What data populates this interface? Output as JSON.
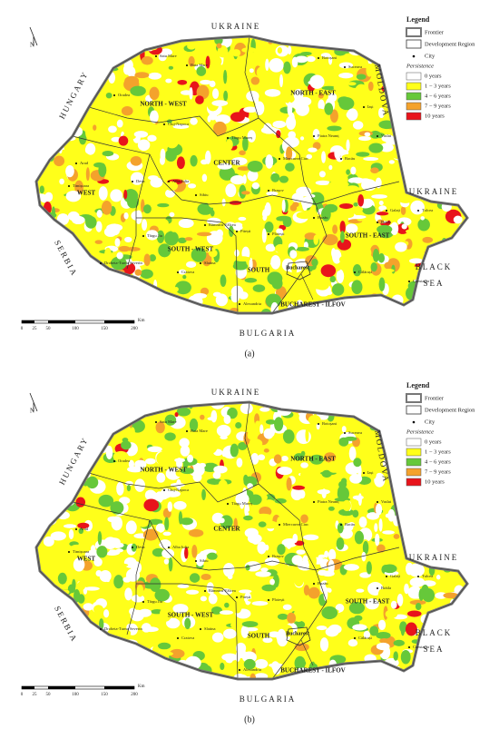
{
  "panels": [
    {
      "caption": "(a)",
      "countries": [
        "UKRAINE",
        "MOLDOVA",
        "UKRAINE",
        "HUNGARY",
        "SERBIA",
        "BULGARIA",
        "BLACK",
        "SEA"
      ],
      "regions": [
        "NORTH - WEST",
        "NORTH - EAST",
        "CENTER",
        "WEST",
        "SOUTH - WEST",
        "SOUTH",
        "SOUTH - EAST",
        "BUCHAREST - ILFOV"
      ],
      "capital": "Bucharest",
      "cities": [
        "Satu Mare",
        "Baia Mare",
        "Suceava",
        "Botoșani",
        "Oradea",
        "Cluj-Napoca",
        "Iași",
        "Arad",
        "Timișoara",
        "Deva",
        "Alba Iulia",
        "Sibiu",
        "Brașov",
        "Târgu Mureș",
        "Piatra Neamț",
        "Bacău",
        "Vaslui",
        "Galați",
        "Brăila",
        "Tulcea",
        "Constanța",
        "Călărași",
        "Craiova",
        "Pitești",
        "Ploiești",
        "Buzău",
        "Alexandria",
        "Slatina",
        "Târgu Jiu",
        "Drobeta-Turnu Severin",
        "Râmnicu Vâlcea",
        "Miercurea Ciuc"
      ],
      "north": "N",
      "scale": {
        "ticks": [
          "0",
          "25",
          "50",
          "100",
          "150",
          "200"
        ],
        "unit": "Km"
      },
      "legend": {
        "title": "Legend",
        "frontier": "Frontier",
        "region": "Development Region",
        "city": "City",
        "subtitle": "Persistence",
        "items": [
          {
            "label": "0 years",
            "color": "#ffffff"
          },
          {
            "label": "1 − 3 years",
            "color": "#ffff1a"
          },
          {
            "label": "4 − 6 years",
            "color": "#66c83a"
          },
          {
            "label": "7 − 9 years",
            "color": "#f4a22c"
          },
          {
            "label": "10 years",
            "color": "#e8141b"
          }
        ]
      }
    },
    {
      "caption": "(b)",
      "countries": [
        "UKRAINE",
        "MOLDOVA",
        "UKRAINE",
        "HUNGARY",
        "SERBIA",
        "BULGARIA",
        "BLACK",
        "SEA"
      ],
      "regions": [
        "NORTH - WEST",
        "NORTH - EAST",
        "CENTER",
        "WEST",
        "SOUTH - WEST",
        "SOUTH",
        "SOUTH - EAST",
        "BUCHAREST - ILFOV"
      ],
      "capital": "Bucharest",
      "cities": [
        "Satu Mare",
        "Baia Mare",
        "Suceava",
        "Botoșani",
        "Oradea",
        "Cluj-Napoca",
        "Iași",
        "Arad",
        "Timișoara",
        "Deva",
        "Alba Iulia",
        "Sibiu",
        "Brașov",
        "Târgu Mureș",
        "Piatra Neamț",
        "Bacău",
        "Vaslui",
        "Galați",
        "Brăila",
        "Tulcea",
        "Constanța",
        "Călărași",
        "Craiova",
        "Pitești",
        "Ploiești",
        "Buzău",
        "Alexandria",
        "Slatina",
        "Târgu Jiu",
        "Drobeta-Turnu Severin",
        "Râmnicu Vâlcea",
        "Miercurea Ciuc"
      ],
      "north": "N",
      "scale": {
        "ticks": [
          "0",
          "25",
          "50",
          "100",
          "150",
          "200"
        ],
        "unit": "Km"
      },
      "legend": {
        "title": "Legend",
        "frontier": "Frontier",
        "region": "Development Region",
        "city": "City",
        "subtitle": "Persistence",
        "items": [
          {
            "label": "0 years",
            "color": "#ffffff"
          },
          {
            "label": "1 − 3 years",
            "color": "#ffff1a"
          },
          {
            "label": "4 − 6 years",
            "color": "#66c83a"
          },
          {
            "label": "7 − 9 years",
            "color": "#f4a22c"
          },
          {
            "label": "10 years",
            "color": "#e8141b"
          }
        ]
      }
    }
  ]
}
